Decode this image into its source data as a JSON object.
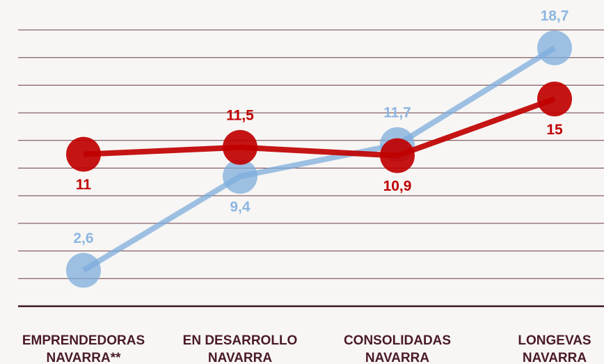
{
  "chart_data": {
    "type": "line",
    "categories": [
      [
        "EMPRENDEDORAS",
        "NAVARRA**"
      ],
      [
        "EN DESARROLLO",
        "NAVARRA"
      ],
      [
        "CONSOLIDADAS",
        "NAVARRA"
      ],
      [
        "LONGEVAS",
        "NAVARRA"
      ]
    ],
    "series": [
      {
        "color": "#7eacdc",
        "values": [
          2.6,
          9.4,
          11.7,
          18.7
        ],
        "value_labels": [
          "2,6",
          "9,4",
          "11,7",
          "18,7"
        ]
      },
      {
        "color": "#c00000",
        "values": [
          11,
          11.5,
          10.9,
          15
        ],
        "value_labels": [
          "11",
          "11,5",
          "10,9",
          "15"
        ]
      }
    ],
    "ylim": [
      0,
      20
    ],
    "yticks": [
      0,
      2,
      4,
      6,
      8,
      10,
      12,
      14,
      16,
      18,
      20
    ],
    "grid": true,
    "tick_labels": false
  }
}
